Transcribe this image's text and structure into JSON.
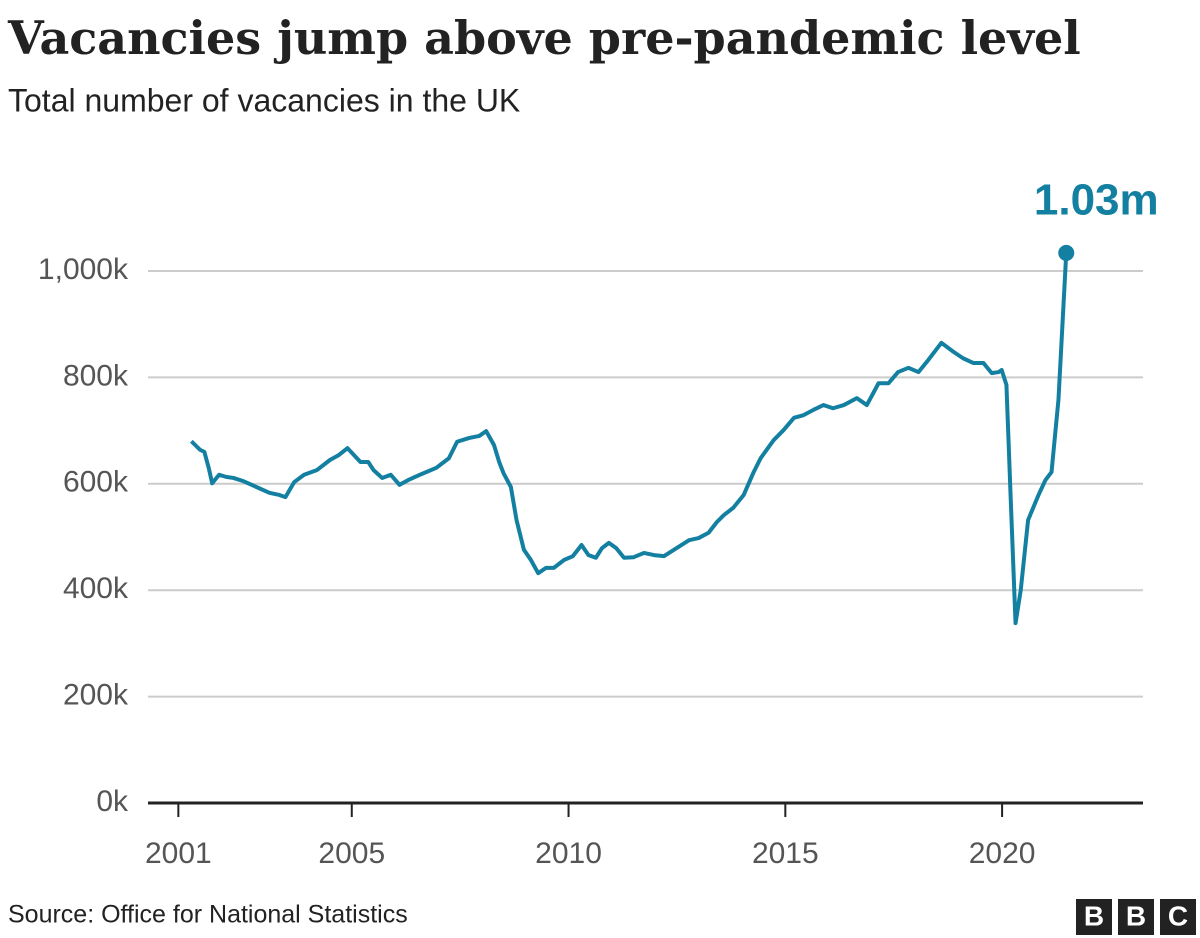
{
  "chart_data": {
    "type": "line",
    "title": "Vacancies jump above pre-pandemic level",
    "subtitle": "Total number of vacancies in the UK",
    "source": "Source: Office for National Statistics",
    "logo": [
      "B",
      "B",
      "C"
    ],
    "xlim": [
      2000.3,
      2023.25
    ],
    "xticks": [
      2001,
      2005,
      2010,
      2015,
      2020
    ],
    "ylim": [
      0,
      1000
    ],
    "yticks": [
      {
        "value": 0,
        "label": "0k"
      },
      {
        "value": 200,
        "label": "200k"
      },
      {
        "value": 400,
        "label": "400k"
      },
      {
        "value": 600,
        "label": "600k"
      },
      {
        "value": 800,
        "label": "800k"
      },
      {
        "value": 1000,
        "label": "1,000k"
      }
    ],
    "grid": true,
    "annotations": [
      {
        "text": "1.03m"
      }
    ],
    "x": [
      2001.3,
      2001.5,
      2001.6,
      2001.7,
      2001.78,
      2001.94,
      2002.1,
      2002.27,
      2002.5,
      2002.8,
      2003.1,
      2003.33,
      2003.47,
      2003.67,
      2003.9,
      2004.2,
      2004.5,
      2004.7,
      2004.9,
      2005.2,
      2005.38,
      2005.5,
      2005.7,
      2005.9,
      2006.1,
      2006.3,
      2006.6,
      2006.95,
      2007.24,
      2007.43,
      2007.7,
      2007.94,
      2008.1,
      2008.28,
      2008.4,
      2008.5,
      2008.67,
      2008.8,
      2008.97,
      2009.13,
      2009.3,
      2009.48,
      2009.66,
      2009.9,
      2010.1,
      2010.3,
      2010.46,
      2010.63,
      2010.77,
      2010.93,
      2011.1,
      2011.28,
      2011.5,
      2011.74,
      2011.97,
      2012.2,
      2012.43,
      2012.78,
      2013.0,
      2013.23,
      2013.42,
      2013.58,
      2013.8,
      2014.04,
      2014.27,
      2014.43,
      2014.73,
      2014.96,
      2015.2,
      2015.42,
      2015.65,
      2015.88,
      2016.1,
      2016.35,
      2016.65,
      2016.88,
      2017.15,
      2017.38,
      2017.6,
      2017.84,
      2018.07,
      2018.3,
      2018.6,
      2018.88,
      2019.1,
      2019.34,
      2019.57,
      2019.76,
      2019.92,
      2019.99,
      2020.1,
      2020.2,
      2020.31,
      2020.43,
      2020.6,
      2020.84,
      2021.0,
      2021.14,
      2021.3,
      2021.48
    ],
    "series": [
      {
        "name": "Vacancies",
        "color": "#1380a1",
        "values": [
          680,
          664,
          660,
          630,
          601,
          617,
          613,
          611,
          605,
          594,
          583,
          579,
          575,
          603,
          617,
          626,
          645,
          654,
          667,
          641,
          641,
          626,
          611,
          617,
          598,
          607,
          618,
          630,
          648,
          679,
          686,
          690,
          699,
          673,
          641,
          620,
          594,
          532,
          476,
          457,
          432,
          442,
          442,
          457,
          464,
          485,
          466,
          461,
          479,
          489,
          479,
          461,
          462,
          470,
          466,
          464,
          476,
          494,
          498,
          508,
          528,
          541,
          555,
          579,
          622,
          648,
          682,
          701,
          724,
          729,
          739,
          748,
          742,
          748,
          761,
          748,
          789,
          789,
          810,
          818,
          810,
          833,
          865,
          848,
          836,
          827,
          827,
          808,
          810,
          814,
          786,
          569,
          338,
          400,
          532,
          579,
          607,
          622,
          758,
          1034
        ]
      }
    ]
  }
}
